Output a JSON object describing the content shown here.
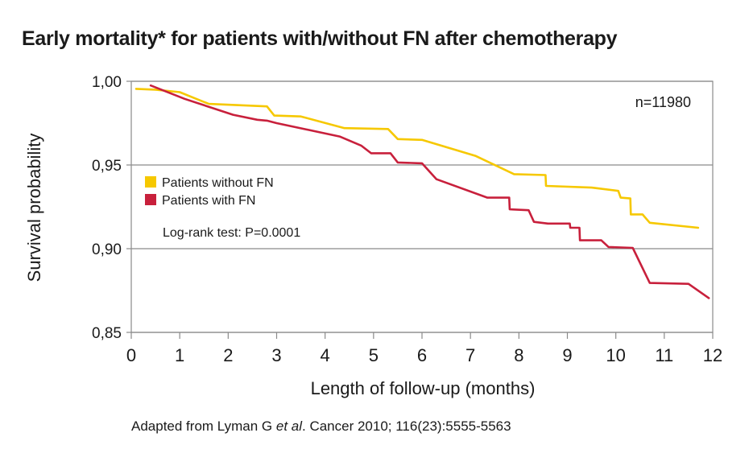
{
  "title": "Early mortality* for patients with/without FN after chemotherapy",
  "source": {
    "prefix": "Adapted from Lyman G ",
    "italic": "et al",
    "suffix": ". Cancer 2010; 116(23):5555-5563"
  },
  "chart_data": {
    "type": "line",
    "title": "Early mortality* for patients with/without FN after chemotherapy",
    "xlabel": "Length of follow-up (months)",
    "ylabel": "Survival probability",
    "xlim": [
      0,
      12
    ],
    "ylim": [
      0.85,
      1.0
    ],
    "x_ticks": [
      "0",
      "1",
      "2",
      "3",
      "4",
      "5",
      "6",
      "7",
      "8",
      "9",
      "10",
      "11",
      "12"
    ],
    "y_ticks": [
      "0,85",
      "0,90",
      "0,95",
      "1,00"
    ],
    "y_tick_values": [
      0.85,
      0.9,
      0.95,
      1.0
    ],
    "grid": "horizontal",
    "legend_position": "left-middle",
    "annotations": {
      "n": "n=11980",
      "test": "Log-rank test: P=0.0001"
    },
    "series": [
      {
        "name": "Patients without FN",
        "color": "#f6c800",
        "x": [
          0.1,
          0.5,
          1.0,
          1.3,
          1.6,
          2.8,
          2.95,
          3.5,
          4.4,
          5.3,
          5.5,
          6.0,
          7.1,
          7.9,
          8.55,
          8.56,
          9.5,
          10.05,
          10.1,
          10.3,
          10.31,
          10.55,
          10.7,
          11.7
        ],
        "y": [
          0.9955,
          0.995,
          0.9935,
          0.99,
          0.9865,
          0.985,
          0.9795,
          0.979,
          0.972,
          0.9715,
          0.9655,
          0.965,
          0.9555,
          0.9445,
          0.944,
          0.9375,
          0.9365,
          0.9345,
          0.9305,
          0.93,
          0.9205,
          0.9205,
          0.9155,
          0.9125
        ]
      },
      {
        "name": "Patients with FN",
        "color": "#c8203c",
        "x": [
          0.4,
          1.1,
          2.1,
          2.6,
          2.8,
          3.0,
          4.3,
          4.75,
          4.95,
          5.35,
          5.5,
          6.0,
          6.3,
          7.35,
          7.8,
          7.81,
          8.2,
          8.31,
          8.6,
          9.05,
          9.06,
          9.25,
          9.26,
          9.7,
          9.85,
          10.35,
          10.7,
          11.5,
          11.92
        ],
        "y": [
          0.9975,
          0.9895,
          0.98,
          0.977,
          0.9765,
          0.975,
          0.967,
          0.9615,
          0.957,
          0.957,
          0.9515,
          0.951,
          0.9415,
          0.9305,
          0.9305,
          0.9235,
          0.923,
          0.916,
          0.915,
          0.915,
          0.9125,
          0.9125,
          0.905,
          0.905,
          0.901,
          0.9005,
          0.8795,
          0.879,
          0.8705
        ]
      }
    ]
  }
}
